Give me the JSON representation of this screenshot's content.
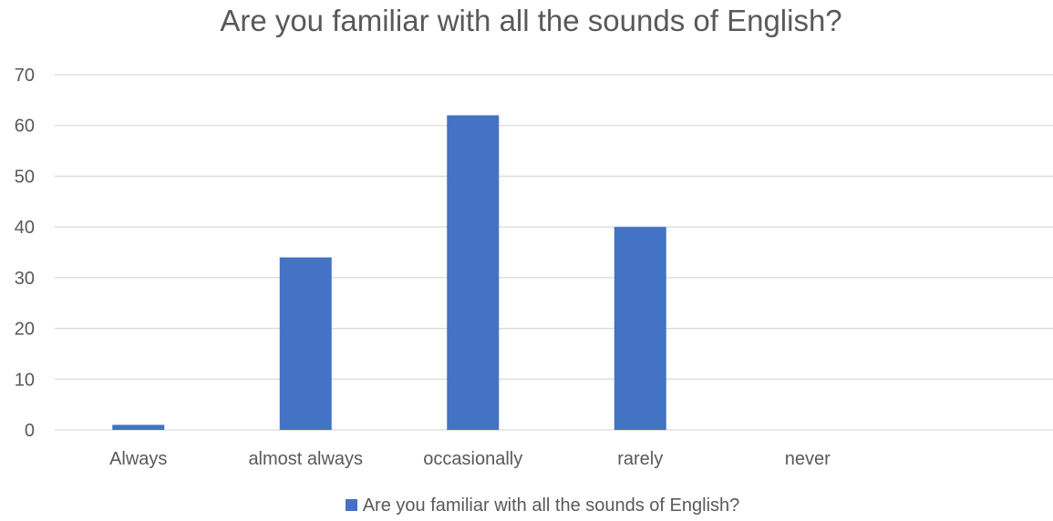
{
  "colors": {
    "bar": "#4472C4",
    "grid": "#D9D9D9",
    "text": "#595959"
  },
  "chart_data": {
    "type": "bar",
    "title": "Are you familiar with all the sounds of English?",
    "categories": [
      "Always",
      "almost always",
      "occasionally",
      "rarely",
      "never"
    ],
    "series": [
      {
        "name": "Are you familiar with all the sounds of English?",
        "values": [
          1,
          34,
          62,
          40,
          0
        ]
      }
    ],
    "ylim": [
      0,
      70
    ],
    "yticks": [
      0,
      10,
      20,
      30,
      40,
      50,
      60,
      70
    ],
    "grid": true,
    "legend_position": "bottom"
  }
}
